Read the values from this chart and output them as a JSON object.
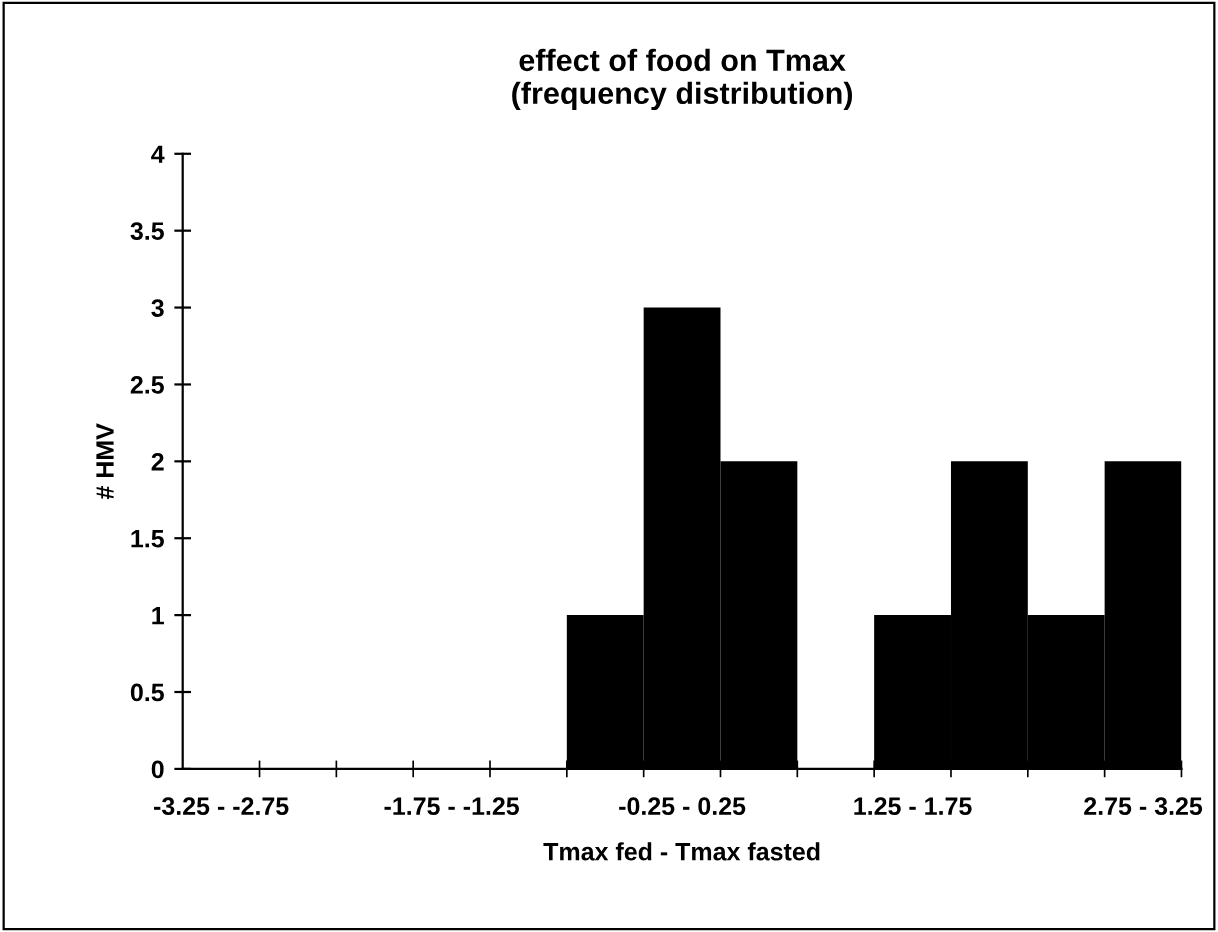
{
  "chart_data": {
    "type": "bar",
    "title": "effect of food on Tmax\n(frequency distribution)",
    "xlabel": "Tmax fed - Tmax fasted",
    "ylabel": "# HMV",
    "categories": [
      "-3.25 - -2.75",
      null,
      null,
      "-1.75 - -1.25",
      null,
      null,
      "-0.25 - 0.25",
      null,
      null,
      "1.25 - 1.75",
      null,
      null,
      "2.75 - 3.25"
    ],
    "values": [
      0,
      0,
      0,
      0,
      0,
      1,
      3,
      2,
      0,
      1,
      2,
      1,
      2
    ],
    "color": "#000000",
    "ylim": [
      0,
      4
    ],
    "yticks": [
      0,
      0.5,
      1,
      1.5,
      2,
      2.5,
      3,
      3.5,
      4
    ],
    "grid": false,
    "legend": false
  }
}
